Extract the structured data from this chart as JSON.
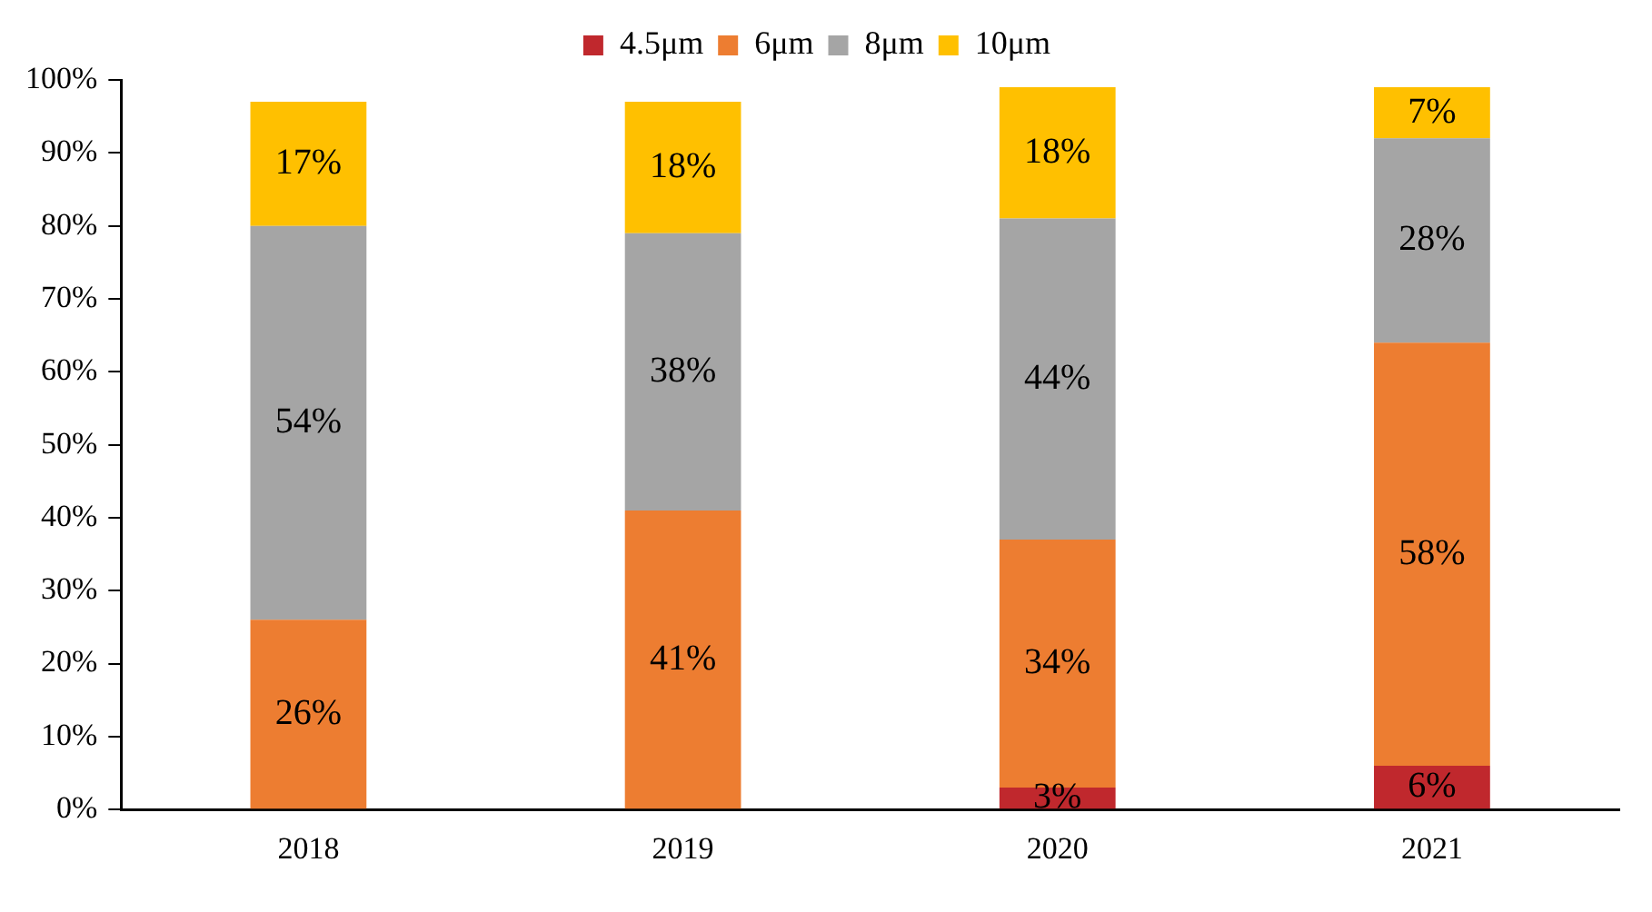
{
  "chart_data": {
    "type": "bar",
    "stacked": true,
    "categories": [
      "2018",
      "2019",
      "2020",
      "2021"
    ],
    "series": [
      {
        "name": "4.5μm",
        "color": "#c0282d",
        "values": [
          null,
          null,
          3,
          6
        ],
        "value_labels": [
          null,
          null,
          "3%",
          "6%"
        ]
      },
      {
        "name": "6μm",
        "color": "#ed7d31",
        "values": [
          26,
          41,
          34,
          58
        ],
        "value_labels": [
          "26%",
          "41%",
          "34%",
          "58%"
        ]
      },
      {
        "name": "8μm",
        "color": "#a5a5a5",
        "values": [
          54,
          38,
          44,
          28
        ],
        "value_labels": [
          "54%",
          "38%",
          "44%",
          "28%"
        ]
      },
      {
        "name": "10μm",
        "color": "#ffc000",
        "values": [
          17,
          18,
          18,
          7
        ],
        "value_labels": [
          "17%",
          "18%",
          "18%",
          "7%"
        ]
      }
    ],
    "ylim": [
      0,
      100
    ],
    "yticks": [
      {
        "value": 0,
        "label": "0%"
      },
      {
        "value": 10,
        "label": "10%"
      },
      {
        "value": 20,
        "label": "20%"
      },
      {
        "value": 30,
        "label": "30%"
      },
      {
        "value": 40,
        "label": "40%"
      },
      {
        "value": 50,
        "label": "50%"
      },
      {
        "value": 60,
        "label": "60%"
      },
      {
        "value": 70,
        "label": "70%"
      },
      {
        "value": 80,
        "label": "80%"
      },
      {
        "value": 90,
        "label": "90%"
      },
      {
        "value": 100,
        "label": "100%"
      }
    ],
    "grid": false,
    "legend": "top"
  }
}
